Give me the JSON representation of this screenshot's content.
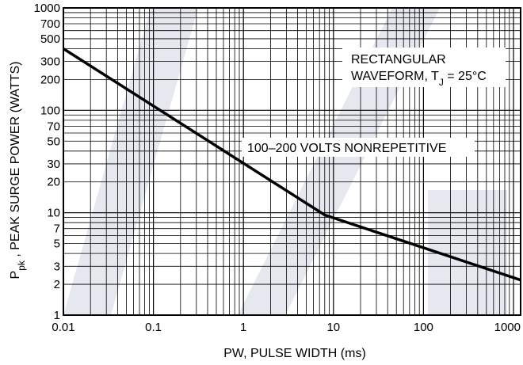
{
  "chart_data": {
    "type": "line",
    "x_scale": "log",
    "y_scale": "log",
    "xlim": [
      0.01,
      1200
    ],
    "ylim": [
      1,
      1000
    ],
    "xlabel": "PW, PULSE WIDTH (ms)",
    "ylabel_main": "P",
    "ylabel_sub": "pk",
    "ylabel_rest": " , PEAK SURGE POWER (WATTS)",
    "x_ticks": [
      {
        "value": 0.01,
        "label": "0.01"
      },
      {
        "value": 0.1,
        "label": "0.1"
      },
      {
        "value": 1,
        "label": "1"
      },
      {
        "value": 10,
        "label": "10"
      },
      {
        "value": 100,
        "label": "100"
      },
      {
        "value": 1000,
        "label": "1000"
      }
    ],
    "y_ticks": [
      {
        "value": 1,
        "label": "1"
      },
      {
        "value": 2,
        "label": "2"
      },
      {
        "value": 3,
        "label": "3"
      },
      {
        "value": 5,
        "label": "5"
      },
      {
        "value": 7,
        "label": "7"
      },
      {
        "value": 10,
        "label": "10"
      },
      {
        "value": 20,
        "label": "20"
      },
      {
        "value": 30,
        "label": "30"
      },
      {
        "value": 50,
        "label": "50"
      },
      {
        "value": 70,
        "label": "70"
      },
      {
        "value": 100,
        "label": "100"
      },
      {
        "value": 200,
        "label": "200"
      },
      {
        "value": 300,
        "label": "300"
      },
      {
        "value": 500,
        "label": "500"
      },
      {
        "value": 700,
        "label": "700"
      },
      {
        "value": 1000,
        "label": "1000"
      }
    ],
    "series": [
      {
        "x": [
          0.01,
          8,
          1200
        ],
        "y": [
          400,
          9.5,
          2.2
        ]
      }
    ],
    "annotations": {
      "waveform_line1": "RECTANGULAR",
      "waveform_line2": "WAVEFORM, T",
      "waveform_sub": "J",
      "waveform_rest": " = 25°C",
      "nonrepetitive": "100–200 VOLTS NONREPETITIVE"
    },
    "grid": true,
    "colors": {
      "line": "#000000",
      "grid": "#000000",
      "watermark": "#e6e8ef"
    }
  }
}
